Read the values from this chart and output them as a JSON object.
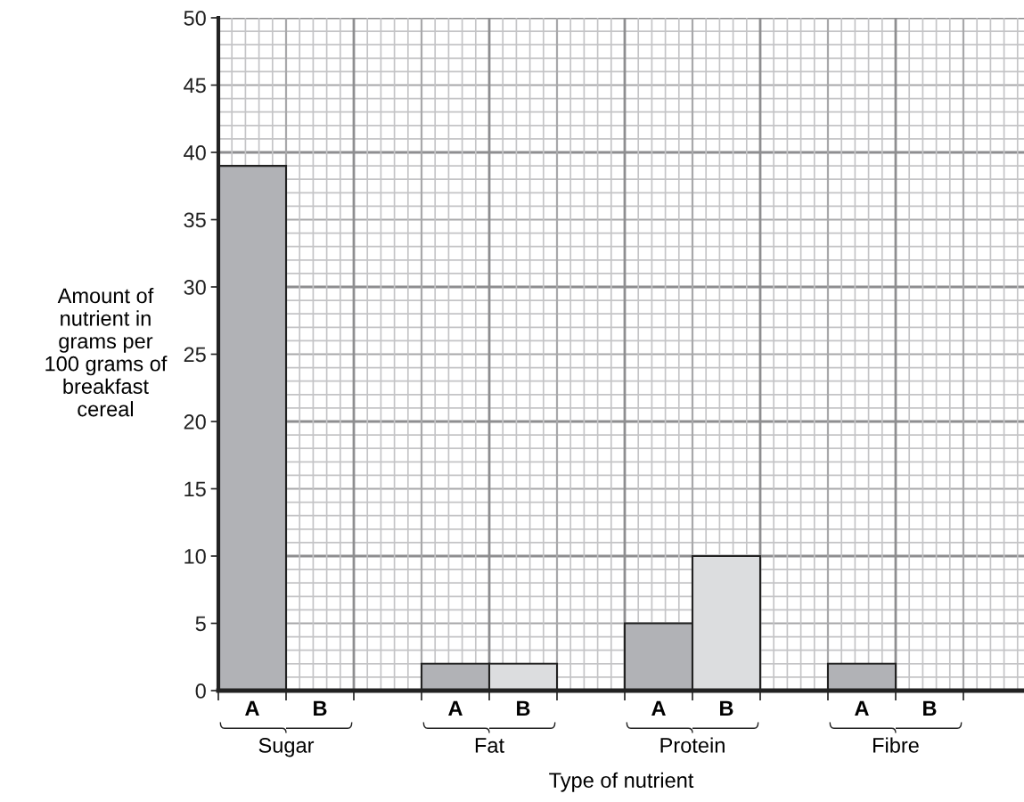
{
  "chart_data": {
    "type": "bar",
    "xlabel": "Type of nutrient",
    "ylabel": "Amount of\nnutrient in\ngrams per\n100 grams of\nbreakfast\ncereal",
    "categories": [
      "Sugar",
      "Fat",
      "Protein",
      "Fibre"
    ],
    "series": [
      {
        "name": "A",
        "color": "#b1b2b6",
        "values": [
          39,
          2,
          5,
          2
        ]
      },
      {
        "name": "B",
        "color": "#dcdddf",
        "values": [
          0,
          2,
          10,
          0
        ]
      }
    ],
    "ylim": [
      0,
      50
    ],
    "yticks": [
      0,
      5,
      10,
      15,
      20,
      25,
      30,
      35,
      40,
      45,
      50
    ],
    "grid": true,
    "legend": "bottom"
  }
}
